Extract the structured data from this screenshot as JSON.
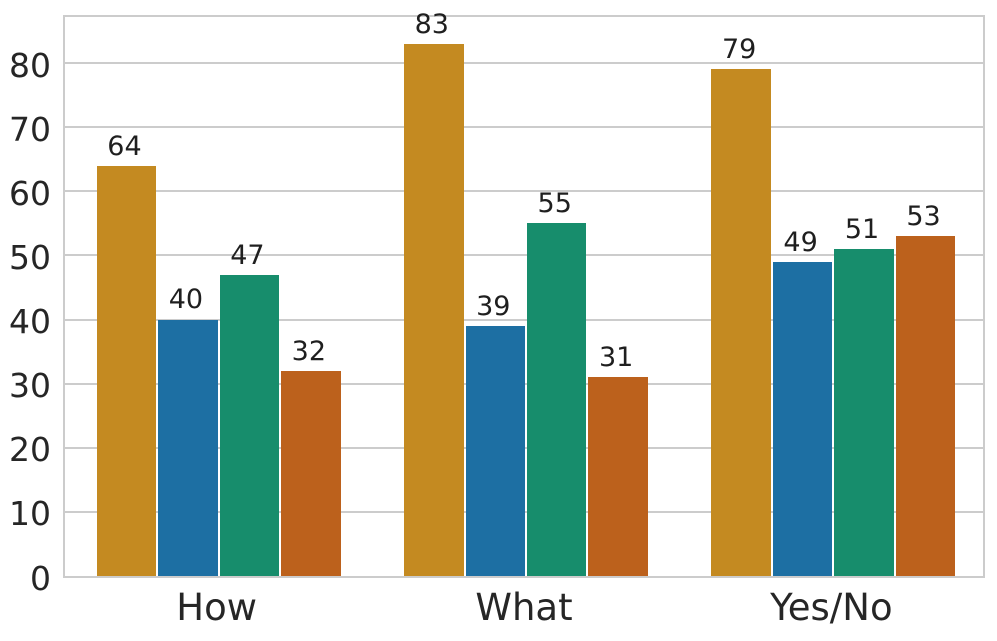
{
  "figure": {
    "background": "#ffffff",
    "title": ""
  },
  "chart_data": {
    "type": "bar",
    "categories": [
      "How",
      "What",
      "Yes/No"
    ],
    "series": [
      {
        "name": "gold",
        "color": "#C48A21",
        "values": [
          64,
          83,
          79
        ]
      },
      {
        "name": "blue",
        "color": "#1D6FA3",
        "values": [
          40,
          39,
          49
        ]
      },
      {
        "name": "teal",
        "color": "#178D6C",
        "values": [
          47,
          55,
          51
        ]
      },
      {
        "name": "rust-orange",
        "color": "#BC611C",
        "values": [
          32,
          31,
          53
        ]
      }
    ],
    "title": "",
    "xlabel": "",
    "ylabel": "",
    "yticks": [
      0,
      10,
      20,
      30,
      40,
      50,
      60,
      70,
      80
    ],
    "ylim": [
      0,
      87.8
    ],
    "grid": true,
    "grid_color": "#cccccc",
    "axis_color": "#cccccc",
    "text_color": "#262626",
    "value_label_color": "#1f1f1f",
    "legend": false,
    "bar_value_labels_shown": true
  }
}
